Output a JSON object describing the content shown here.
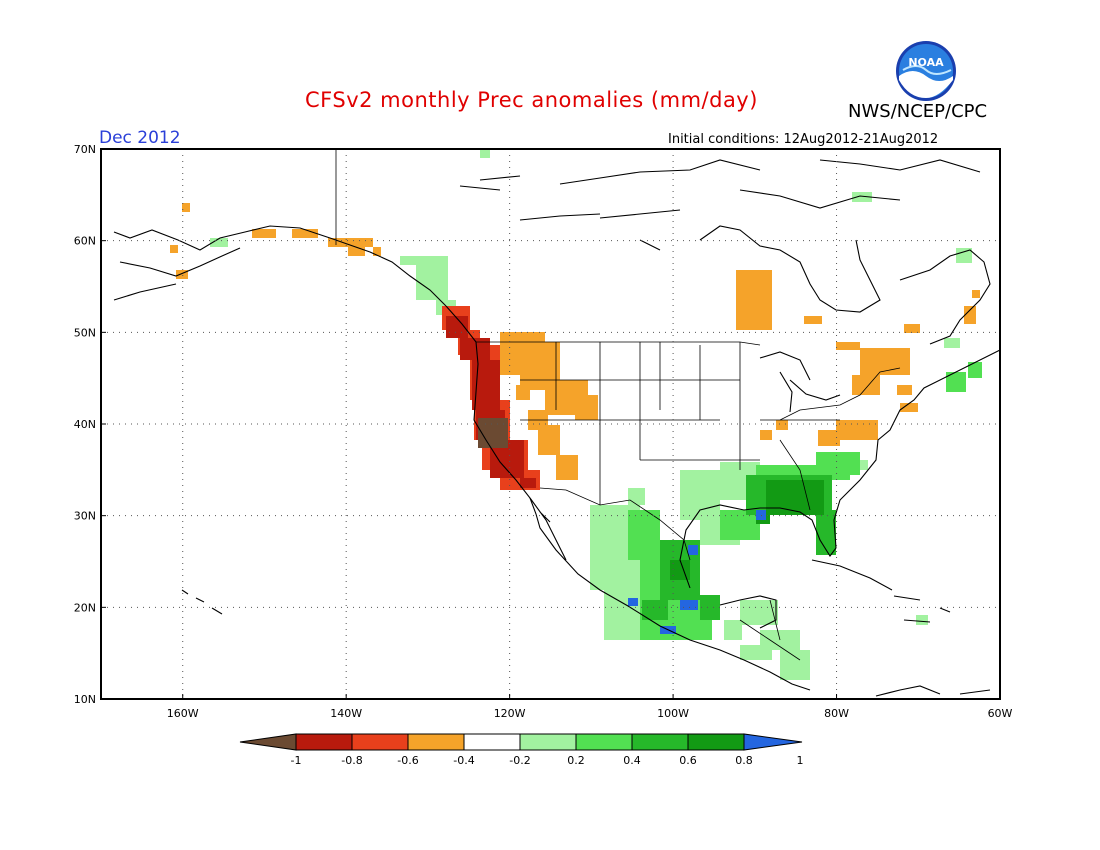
{
  "header": {
    "title": "CFSv2 monthly Prec anomalies (mm/day)",
    "agency": "NWS/NCEP/CPC",
    "logo_text": "NOAA",
    "month_label": "Dec 2012",
    "initial_conditions": "Initial conditions: 12Aug2012-21Aug2012"
  },
  "map": {
    "lat_labels": [
      "70N",
      "60N",
      "50N",
      "40N",
      "30N",
      "20N",
      "10N"
    ],
    "lat_values": [
      70,
      60,
      50,
      40,
      30,
      20,
      10
    ],
    "lon_labels": [
      "160W",
      "140W",
      "120W",
      "100W",
      "80W",
      "60W"
    ],
    "lon_values": [
      -160,
      -140,
      -120,
      -100,
      -80,
      -60
    ],
    "extent": {
      "lon_min": -170,
      "lon_max": -60,
      "lat_min": 10,
      "lat_max": 70
    },
    "grid": "dotted"
  },
  "legend": {
    "tick_labels": [
      "-1",
      "-0.8",
      "-0.6",
      "-0.4",
      "-0.2",
      "0.2",
      "0.4",
      "0.6",
      "0.8",
      "1"
    ],
    "colors": [
      "#6b4a32",
      "#b81a0d",
      "#e8401c",
      "#f5a32a",
      "#ffffff",
      "#a2f2a0",
      "#52e052",
      "#26b82a",
      "#129a14",
      "#2466e0"
    ]
  },
  "anomaly_regions": [
    {
      "name": "pacific-northwest-coast",
      "category": "-0.8",
      "color": "#b81a0d"
    },
    {
      "name": "northern-california",
      "category": "-1",
      "color": "#6b4a32"
    },
    {
      "name": "intermountain-west",
      "category": "-0.4",
      "color": "#f5a32a"
    },
    {
      "name": "southeast-us",
      "category": "0.8",
      "color": "#129a14"
    },
    {
      "name": "mexico",
      "category": "0.6",
      "color": "#26b82a"
    }
  ]
}
